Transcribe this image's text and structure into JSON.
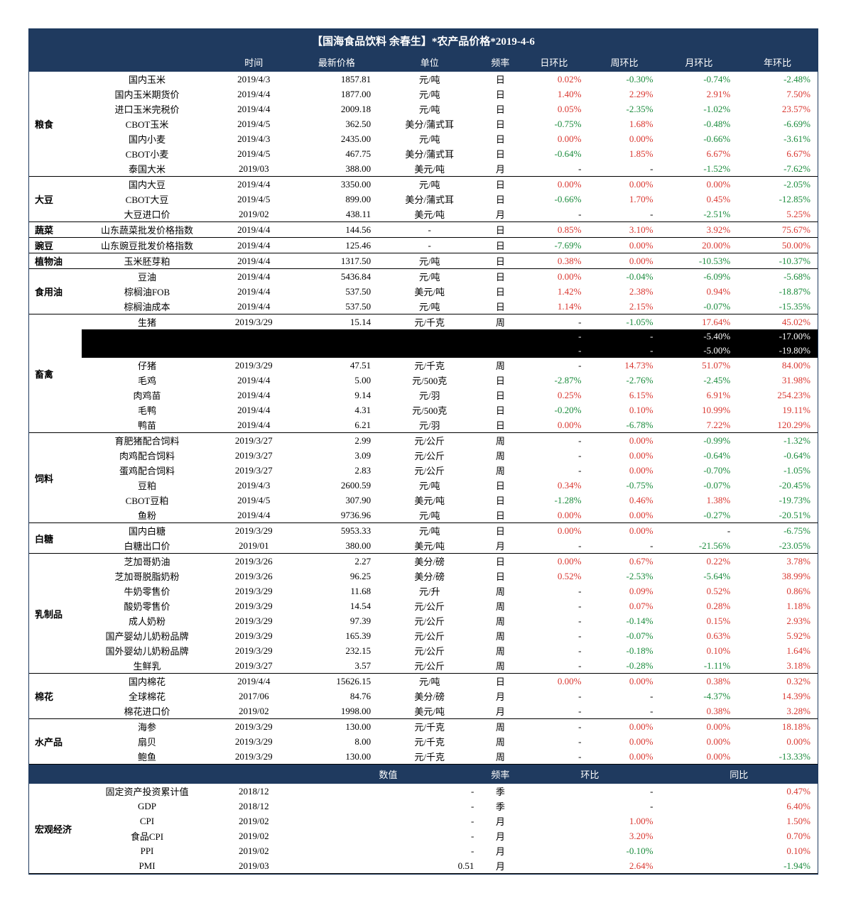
{
  "title": "【国海食品饮料 余春生】*农产品价格*2019-4-6",
  "headers": {
    "time": "时间",
    "price": "最新价格",
    "unit": "单位",
    "freq": "频率",
    "dod": "日环比",
    "wow": "周环比",
    "mom": "月环比",
    "yoy": "年环比"
  },
  "macro_headers": {
    "value": "数值",
    "freq": "频率",
    "hb": "环比",
    "tb": "同比"
  },
  "colors": {
    "header_bg": "#1f3a5f",
    "header_fg": "#ffffff",
    "pos": "#d9362f",
    "neg": "#1a8b3c",
    "border": "#000000"
  },
  "groups": [
    {
      "cat": "粮食",
      "rows": [
        {
          "name": "国内玉米",
          "time": "2019/4/3",
          "price": "1857.81",
          "unit": "元/吨",
          "freq": "日",
          "dod": "0.02%",
          "wow": "-0.30%",
          "mom": "-0.74%",
          "yoy": "-2.48%"
        },
        {
          "name": "国内玉米期货价",
          "time": "2019/4/4",
          "price": "1877.00",
          "unit": "元/吨",
          "freq": "日",
          "dod": "1.40%",
          "wow": "2.29%",
          "mom": "2.91%",
          "yoy": "7.50%"
        },
        {
          "name": "进口玉米完税价",
          "time": "2019/4/4",
          "price": "2009.18",
          "unit": "元/吨",
          "freq": "日",
          "dod": "0.05%",
          "wow": "-2.35%",
          "mom": "-1.02%",
          "yoy": "23.57%"
        },
        {
          "name": "CBOT玉米",
          "time": "2019/4/5",
          "price": "362.50",
          "unit": "美分/蒲式耳",
          "freq": "日",
          "dod": "-0.75%",
          "wow": "1.68%",
          "mom": "-0.48%",
          "yoy": "-6.69%"
        },
        {
          "name": "国内小麦",
          "time": "2019/4/3",
          "price": "2435.00",
          "unit": "元/吨",
          "freq": "日",
          "dod": "0.00%",
          "wow": "0.00%",
          "mom": "-0.66%",
          "yoy": "-3.61%"
        },
        {
          "name": "CBOT小麦",
          "time": "2019/4/5",
          "price": "467.75",
          "unit": "美分/蒲式耳",
          "freq": "日",
          "dod": "-0.64%",
          "wow": "1.85%",
          "mom": "6.67%",
          "yoy": "6.67%"
        },
        {
          "name": "泰国大米",
          "time": "2019/03",
          "price": "388.00",
          "unit": "美元/吨",
          "freq": "月",
          "dod": "-",
          "wow": "-",
          "mom": "-1.52%",
          "yoy": "-7.62%"
        }
      ]
    },
    {
      "cat": "大豆",
      "rows": [
        {
          "name": "国内大豆",
          "time": "2019/4/4",
          "price": "3350.00",
          "unit": "元/吨",
          "freq": "日",
          "dod": "0.00%",
          "wow": "0.00%",
          "mom": "0.00%",
          "yoy": "-2.05%"
        },
        {
          "name": "CBOT大豆",
          "time": "2019/4/5",
          "price": "899.00",
          "unit": "美分/蒲式耳",
          "freq": "日",
          "dod": "-0.66%",
          "wow": "1.70%",
          "mom": "0.45%",
          "yoy": "-12.85%"
        },
        {
          "name": "大豆进口价",
          "time": "2019/02",
          "price": "438.11",
          "unit": "美元/吨",
          "freq": "月",
          "dod": "-",
          "wow": "-",
          "mom": "-2.51%",
          "yoy": "5.25%"
        }
      ]
    },
    {
      "cat": "蔬菜",
      "rows": [
        {
          "name": "山东蔬菜批发价格指数",
          "time": "2019/4/4",
          "price": "144.56",
          "unit": "-",
          "freq": "日",
          "dod": "0.85%",
          "wow": "3.10%",
          "mom": "3.92%",
          "yoy": "75.67%"
        }
      ]
    },
    {
      "cat": "豌豆",
      "rows": [
        {
          "name": "山东豌豆批发价格指数",
          "time": "2019/4/4",
          "price": "125.46",
          "unit": "-",
          "freq": "日",
          "dod": "-7.69%",
          "wow": "0.00%",
          "mom": "20.00%",
          "yoy": "50.00%"
        }
      ]
    },
    {
      "cat": "植物油",
      "rows": [
        {
          "name": "玉米胚芽粕",
          "time": "2019/4/4",
          "price": "1317.50",
          "unit": "元/吨",
          "freq": "日",
          "dod": "0.38%",
          "wow": "0.00%",
          "mom": "-10.53%",
          "yoy": "-10.37%"
        }
      ]
    },
    {
      "cat": "食用油",
      "rows": [
        {
          "name": "豆油",
          "time": "2019/4/4",
          "price": "5436.84",
          "unit": "元/吨",
          "freq": "日",
          "dod": "0.00%",
          "wow": "-0.04%",
          "mom": "-6.09%",
          "yoy": "-5.68%"
        },
        {
          "name": "棕榈油FOB",
          "time": "2019/4/4",
          "price": "537.50",
          "unit": "美元/吨",
          "freq": "日",
          "dod": "1.42%",
          "wow": "2.38%",
          "mom": "0.94%",
          "yoy": "-18.87%"
        },
        {
          "name": "棕榈油成本",
          "time": "2019/4/4",
          "price": "537.50",
          "unit": "元/吨",
          "freq": "日",
          "dod": "1.14%",
          "wow": "2.15%",
          "mom": "-0.07%",
          "yoy": "-15.35%"
        }
      ]
    },
    {
      "cat": "畜禽",
      "rows": [
        {
          "name": "生猪",
          "time": "2019/3/29",
          "price": "15.14",
          "unit": "元/千克",
          "freq": "周",
          "dod": "-",
          "wow": "-1.05%",
          "mom": "17.64%",
          "yoy": "45.02%"
        },
        {
          "redacted": true,
          "mom": "-5.40%",
          "yoy": "-17.00%"
        },
        {
          "redacted": true,
          "mom": "-5.00%",
          "yoy": "-19.80%"
        },
        {
          "name": "仔猪",
          "time": "2019/3/29",
          "price": "47.51",
          "unit": "元/千克",
          "freq": "周",
          "dod": "-",
          "wow": "14.73%",
          "mom": "51.07%",
          "yoy": "84.00%"
        },
        {
          "name": "毛鸡",
          "time": "2019/4/4",
          "price": "5.00",
          "unit": "元/500克",
          "freq": "日",
          "dod": "-2.87%",
          "wow": "-2.76%",
          "mom": "-2.45%",
          "yoy": "31.98%"
        },
        {
          "name": "肉鸡苗",
          "time": "2019/4/4",
          "price": "9.14",
          "unit": "元/羽",
          "freq": "日",
          "dod": "0.25%",
          "wow": "6.15%",
          "mom": "6.91%",
          "yoy": "254.23%"
        },
        {
          "name": "毛鸭",
          "time": "2019/4/4",
          "price": "4.31",
          "unit": "元/500克",
          "freq": "日",
          "dod": "-0.20%",
          "wow": "0.10%",
          "mom": "10.99%",
          "yoy": "19.11%"
        },
        {
          "name": "鸭苗",
          "time": "2019/4/4",
          "price": "6.21",
          "unit": "元/羽",
          "freq": "日",
          "dod": "0.00%",
          "wow": "-6.78%",
          "mom": "7.22%",
          "yoy": "120.29%"
        }
      ]
    },
    {
      "cat": "饲料",
      "rows": [
        {
          "name": "育肥猪配合饲料",
          "time": "2019/3/27",
          "price": "2.99",
          "unit": "元/公斤",
          "freq": "周",
          "dod": "-",
          "wow": "0.00%",
          "mom": "-0.99%",
          "yoy": "-1.32%"
        },
        {
          "name": "肉鸡配合饲料",
          "time": "2019/3/27",
          "price": "3.09",
          "unit": "元/公斤",
          "freq": "周",
          "dod": "-",
          "wow": "0.00%",
          "mom": "-0.64%",
          "yoy": "-0.64%"
        },
        {
          "name": "蛋鸡配合饲料",
          "time": "2019/3/27",
          "price": "2.83",
          "unit": "元/公斤",
          "freq": "周",
          "dod": "-",
          "wow": "0.00%",
          "mom": "-0.70%",
          "yoy": "-1.05%"
        },
        {
          "name": "豆粕",
          "time": "2019/4/3",
          "price": "2600.59",
          "unit": "元/吨",
          "freq": "日",
          "dod": "0.34%",
          "wow": "-0.75%",
          "mom": "-0.07%",
          "yoy": "-20.45%"
        },
        {
          "name": "CBOT豆粕",
          "time": "2019/4/5",
          "price": "307.90",
          "unit": "美元/吨",
          "freq": "日",
          "dod": "-1.28%",
          "wow": "0.46%",
          "mom": "1.38%",
          "yoy": "-19.73%"
        },
        {
          "name": "鱼粉",
          "time": "2019/4/4",
          "price": "9736.96",
          "unit": "元/吨",
          "freq": "日",
          "dod": "0.00%",
          "wow": "0.00%",
          "mom": "-0.27%",
          "yoy": "-20.51%"
        }
      ]
    },
    {
      "cat": "白糖",
      "rows": [
        {
          "name": "国内白糖",
          "time": "2019/3/29",
          "price": "5953.33",
          "unit": "元/吨",
          "freq": "日",
          "dod": "0.00%",
          "wow": "0.00%",
          "mom": "-",
          "yoy": "-6.75%"
        },
        {
          "name": "白糖出口价",
          "time": "2019/01",
          "price": "380.00",
          "unit": "美元/吨",
          "freq": "月",
          "dod": "-",
          "wow": "-",
          "mom": "-21.56%",
          "yoy": "-23.05%"
        }
      ]
    },
    {
      "cat": "乳制品",
      "rows": [
        {
          "name": "芝加哥奶油",
          "time": "2019/3/26",
          "price": "2.27",
          "unit": "美分/磅",
          "freq": "日",
          "dod": "0.00%",
          "wow": "0.67%",
          "mom": "0.22%",
          "yoy": "3.78%"
        },
        {
          "name": "芝加哥脱脂奶粉",
          "time": "2019/3/26",
          "price": "96.25",
          "unit": "美分/磅",
          "freq": "日",
          "dod": "0.52%",
          "wow": "-2.53%",
          "mom": "-5.64%",
          "yoy": "38.99%"
        },
        {
          "name": "牛奶零售价",
          "time": "2019/3/29",
          "price": "11.68",
          "unit": "元/升",
          "freq": "周",
          "dod": "-",
          "wow": "0.09%",
          "mom": "0.52%",
          "yoy": "0.86%"
        },
        {
          "name": "酸奶零售价",
          "time": "2019/3/29",
          "price": "14.54",
          "unit": "元/公斤",
          "freq": "周",
          "dod": "-",
          "wow": "0.07%",
          "mom": "0.28%",
          "yoy": "1.18%"
        },
        {
          "name": "成人奶粉",
          "time": "2019/3/29",
          "price": "97.39",
          "unit": "元/公斤",
          "freq": "周",
          "dod": "-",
          "wow": "-0.14%",
          "mom": "0.15%",
          "yoy": "2.93%"
        },
        {
          "name": "国产婴幼儿奶粉品牌",
          "time": "2019/3/29",
          "price": "165.39",
          "unit": "元/公斤",
          "freq": "周",
          "dod": "-",
          "wow": "-0.07%",
          "mom": "0.63%",
          "yoy": "5.92%"
        },
        {
          "name": "国外婴幼儿奶粉品牌",
          "time": "2019/3/29",
          "price": "232.15",
          "unit": "元/公斤",
          "freq": "周",
          "dod": "-",
          "wow": "-0.18%",
          "mom": "0.10%",
          "yoy": "1.64%"
        },
        {
          "name": "生鲜乳",
          "time": "2019/3/27",
          "price": "3.57",
          "unit": "元/公斤",
          "freq": "周",
          "dod": "-",
          "wow": "-0.28%",
          "mom": "-1.11%",
          "yoy": "3.18%"
        }
      ]
    },
    {
      "cat": "棉花",
      "rows": [
        {
          "name": "国内棉花",
          "time": "2019/4/4",
          "price": "15626.15",
          "unit": "元/吨",
          "freq": "日",
          "dod": "0.00%",
          "wow": "0.00%",
          "mom": "0.38%",
          "yoy": "0.32%"
        },
        {
          "name": "全球棉花",
          "time": "2017/06",
          "price": "84.76",
          "unit": "美分/磅",
          "freq": "月",
          "dod": "-",
          "wow": "-",
          "mom": "-4.37%",
          "yoy": "14.39%"
        },
        {
          "name": "棉花进口价",
          "time": "2019/02",
          "price": "1998.00",
          "unit": "美元/吨",
          "freq": "月",
          "dod": "-",
          "wow": "-",
          "mom": "0.38%",
          "yoy": "3.28%"
        }
      ]
    },
    {
      "cat": "水产品",
      "rows": [
        {
          "name": "海参",
          "time": "2019/3/29",
          "price": "130.00",
          "unit": "元/千克",
          "freq": "周",
          "dod": "-",
          "wow": "0.00%",
          "mom": "0.00%",
          "yoy": "18.18%"
        },
        {
          "name": "扇贝",
          "time": "2019/3/29",
          "price": "8.00",
          "unit": "元/千克",
          "freq": "周",
          "dod": "-",
          "wow": "0.00%",
          "mom": "0.00%",
          "yoy": "0.00%"
        },
        {
          "name": "鲍鱼",
          "time": "2019/3/29",
          "price": "130.00",
          "unit": "元/千克",
          "freq": "周",
          "dod": "-",
          "wow": "0.00%",
          "mom": "0.00%",
          "yoy": "-13.33%"
        }
      ]
    }
  ],
  "macro": {
    "cat": "宏观经济",
    "rows": [
      {
        "name": "固定资产投资累计值",
        "time": "2018/12",
        "value": "-",
        "freq": "季",
        "hb": "-",
        "tb": "0.47%"
      },
      {
        "name": "GDP",
        "time": "2018/12",
        "value": "-",
        "freq": "季",
        "hb": "-",
        "tb": "6.40%"
      },
      {
        "name": "CPI",
        "time": "2019/02",
        "value": "-",
        "freq": "月",
        "hb": "1.00%",
        "tb": "1.50%"
      },
      {
        "name": "食品CPI",
        "time": "2019/02",
        "value": "-",
        "freq": "月",
        "hb": "3.20%",
        "tb": "0.70%"
      },
      {
        "name": "PPI",
        "time": "2019/02",
        "value": "-",
        "freq": "月",
        "hb": "-0.10%",
        "tb": "0.10%"
      },
      {
        "name": "PMI",
        "time": "2019/03",
        "value": "0.51",
        "freq": "月",
        "hb": "2.64%",
        "tb": "-1.94%"
      }
    ]
  }
}
